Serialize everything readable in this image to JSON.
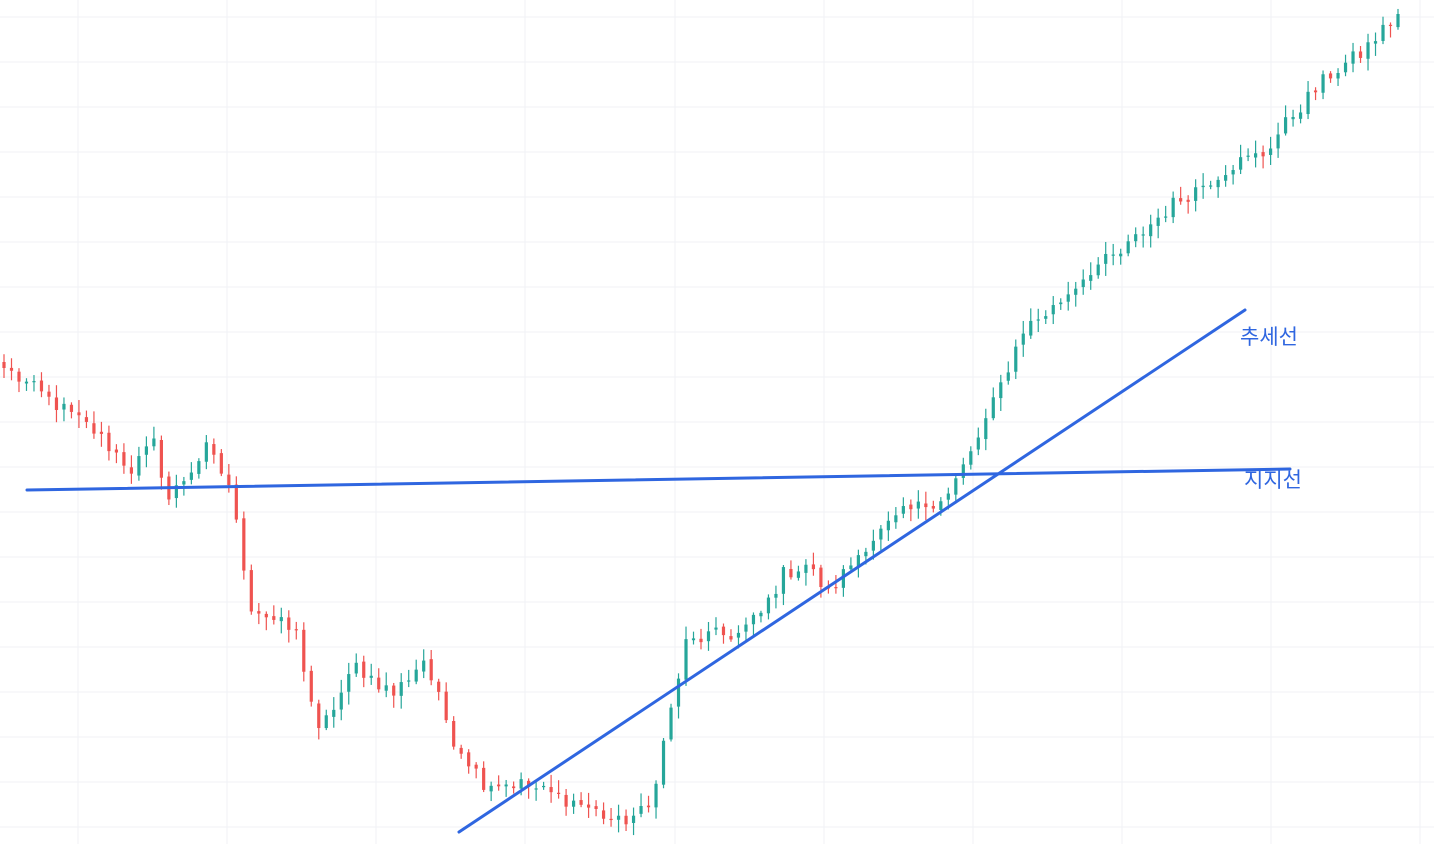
{
  "chart_data": {
    "type": "candlestick",
    "title": "",
    "xlabel": "",
    "ylabel": "",
    "grid": true,
    "ylim": [
      0,
      844
    ],
    "colors": {
      "up": "#26a69a",
      "down": "#ef5350",
      "annotation_line": "#2f66e0",
      "annotation_text": "#2f66e0",
      "grid": "#f0f2f5",
      "background": "#ffffff"
    },
    "waypoints": [
      {
        "i": 0,
        "v": 476
      },
      {
        "i": 12,
        "v": 413
      },
      {
        "i": 17,
        "v": 375
      },
      {
        "i": 20,
        "v": 400
      },
      {
        "i": 22,
        "v": 345
      },
      {
        "i": 27,
        "v": 395
      },
      {
        "i": 30,
        "v": 360
      },
      {
        "i": 33,
        "v": 238
      },
      {
        "i": 39,
        "v": 210
      },
      {
        "i": 42,
        "v": 110
      },
      {
        "i": 47,
        "v": 178
      },
      {
        "i": 52,
        "v": 150
      },
      {
        "i": 56,
        "v": 185
      },
      {
        "i": 60,
        "v": 105
      },
      {
        "i": 64,
        "v": 62
      },
      {
        "i": 69,
        "v": 60
      },
      {
        "i": 77,
        "v": 40
      },
      {
        "i": 82,
        "v": 21
      },
      {
        "i": 86,
        "v": 35
      },
      {
        "i": 91,
        "v": 200
      },
      {
        "i": 94,
        "v": 208
      },
      {
        "i": 98,
        "v": 210
      },
      {
        "i": 101,
        "v": 230
      },
      {
        "i": 104,
        "v": 270
      },
      {
        "i": 107,
        "v": 280
      },
      {
        "i": 110,
        "v": 250
      },
      {
        "i": 115,
        "v": 300
      },
      {
        "i": 120,
        "v": 330
      },
      {
        "i": 126,
        "v": 350
      },
      {
        "i": 129,
        "v": 390
      },
      {
        "i": 132,
        "v": 440
      },
      {
        "i": 136,
        "v": 515
      },
      {
        "i": 140,
        "v": 536
      },
      {
        "i": 145,
        "v": 575
      },
      {
        "i": 149,
        "v": 590
      },
      {
        "i": 153,
        "v": 620
      },
      {
        "i": 156,
        "v": 640
      },
      {
        "i": 160,
        "v": 660
      },
      {
        "i": 164,
        "v": 680
      },
      {
        "i": 168,
        "v": 690
      },
      {
        "i": 172,
        "v": 730
      },
      {
        "i": 177,
        "v": 770
      },
      {
        "i": 181,
        "v": 790
      },
      {
        "i": 186,
        "v": 830
      }
    ],
    "annotations": [
      {
        "name": "support-line",
        "label": "지지선",
        "type": "horizontal-ish"
      },
      {
        "name": "trend-line",
        "label": "추세선",
        "type": "rising"
      }
    ]
  },
  "labels": {
    "trend": "추세선",
    "support": "지지선"
  }
}
